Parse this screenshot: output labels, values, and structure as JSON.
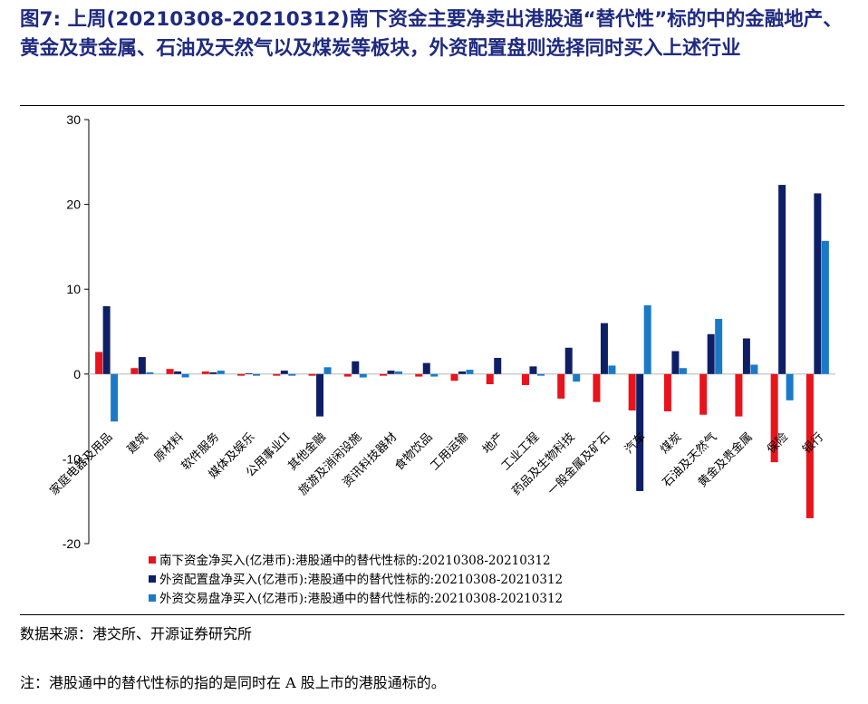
{
  "title": "图7:  上周(20210308-20210312)南下资金主要净卖出港股通“替代性”标的中的金融地产、黄金及贵金属、石油及天然气以及煤炭等板块，外资配置盘则选择同时买入上述行业",
  "source": "数据来源：港交所、开源证券研究所",
  "note": "注：港股通中的替代性标的指的是同时在 A 股上市的港股通标的。",
  "chart_data": {
    "type": "bar",
    "ylim": [
      -20,
      30
    ],
    "yticks": [
      -20,
      -10,
      0,
      10,
      20,
      30
    ],
    "grid": false,
    "legend_position": "bottom-left",
    "categories": [
      "家庭电器及用品",
      "建筑",
      "原材料",
      "软件服务",
      "媒体及娱乐",
      "公用事业II",
      "其他金融",
      "旅游及消闲设施",
      "资讯科技器材",
      "食物饮品",
      "工用运输",
      "地产",
      "工业工程",
      "药品及生物科技",
      "一般金属及矿石",
      "汽车",
      "煤炭",
      "石油及天然气",
      "黄金及贵金属",
      "保险",
      "银行"
    ],
    "series": [
      {
        "name": "南下资金净买入(亿港币):港股通中的替代性标的:20210308-20210312",
        "color": "#e8141c",
        "values": [
          2.6,
          0.7,
          0.6,
          0.3,
          -0.2,
          -0.2,
          -0.2,
          -0.3,
          -0.2,
          -0.3,
          -0.8,
          -1.2,
          -1.3,
          -2.9,
          -3.3,
          -4.3,
          -4.4,
          -4.8,
          -5.0,
          -10.4,
          -17.0
        ]
      },
      {
        "name": "外资配置盘净买入(亿港币):港股通中的替代性标的:20210308-20210312",
        "color": "#0f1f66",
        "values": [
          8.0,
          2.0,
          0.3,
          0.2,
          0.1,
          0.4,
          -5.0,
          1.5,
          0.4,
          1.3,
          0.3,
          1.9,
          0.9,
          3.1,
          6.0,
          -13.8,
          2.7,
          4.7,
          4.2,
          22.3,
          21.3
        ]
      },
      {
        "name": "外资交易盘净买入(亿港币):港股通中的替代性标的:20210308-20210312",
        "color": "#1a7ac8",
        "values": [
          -5.6,
          0.2,
          -0.4,
          0.4,
          -0.2,
          -0.2,
          0.8,
          -0.4,
          0.3,
          -0.3,
          0.5,
          0.0,
          -0.2,
          -0.9,
          1.0,
          8.1,
          0.7,
          6.5,
          1.1,
          -3.1,
          15.7
        ]
      }
    ]
  }
}
